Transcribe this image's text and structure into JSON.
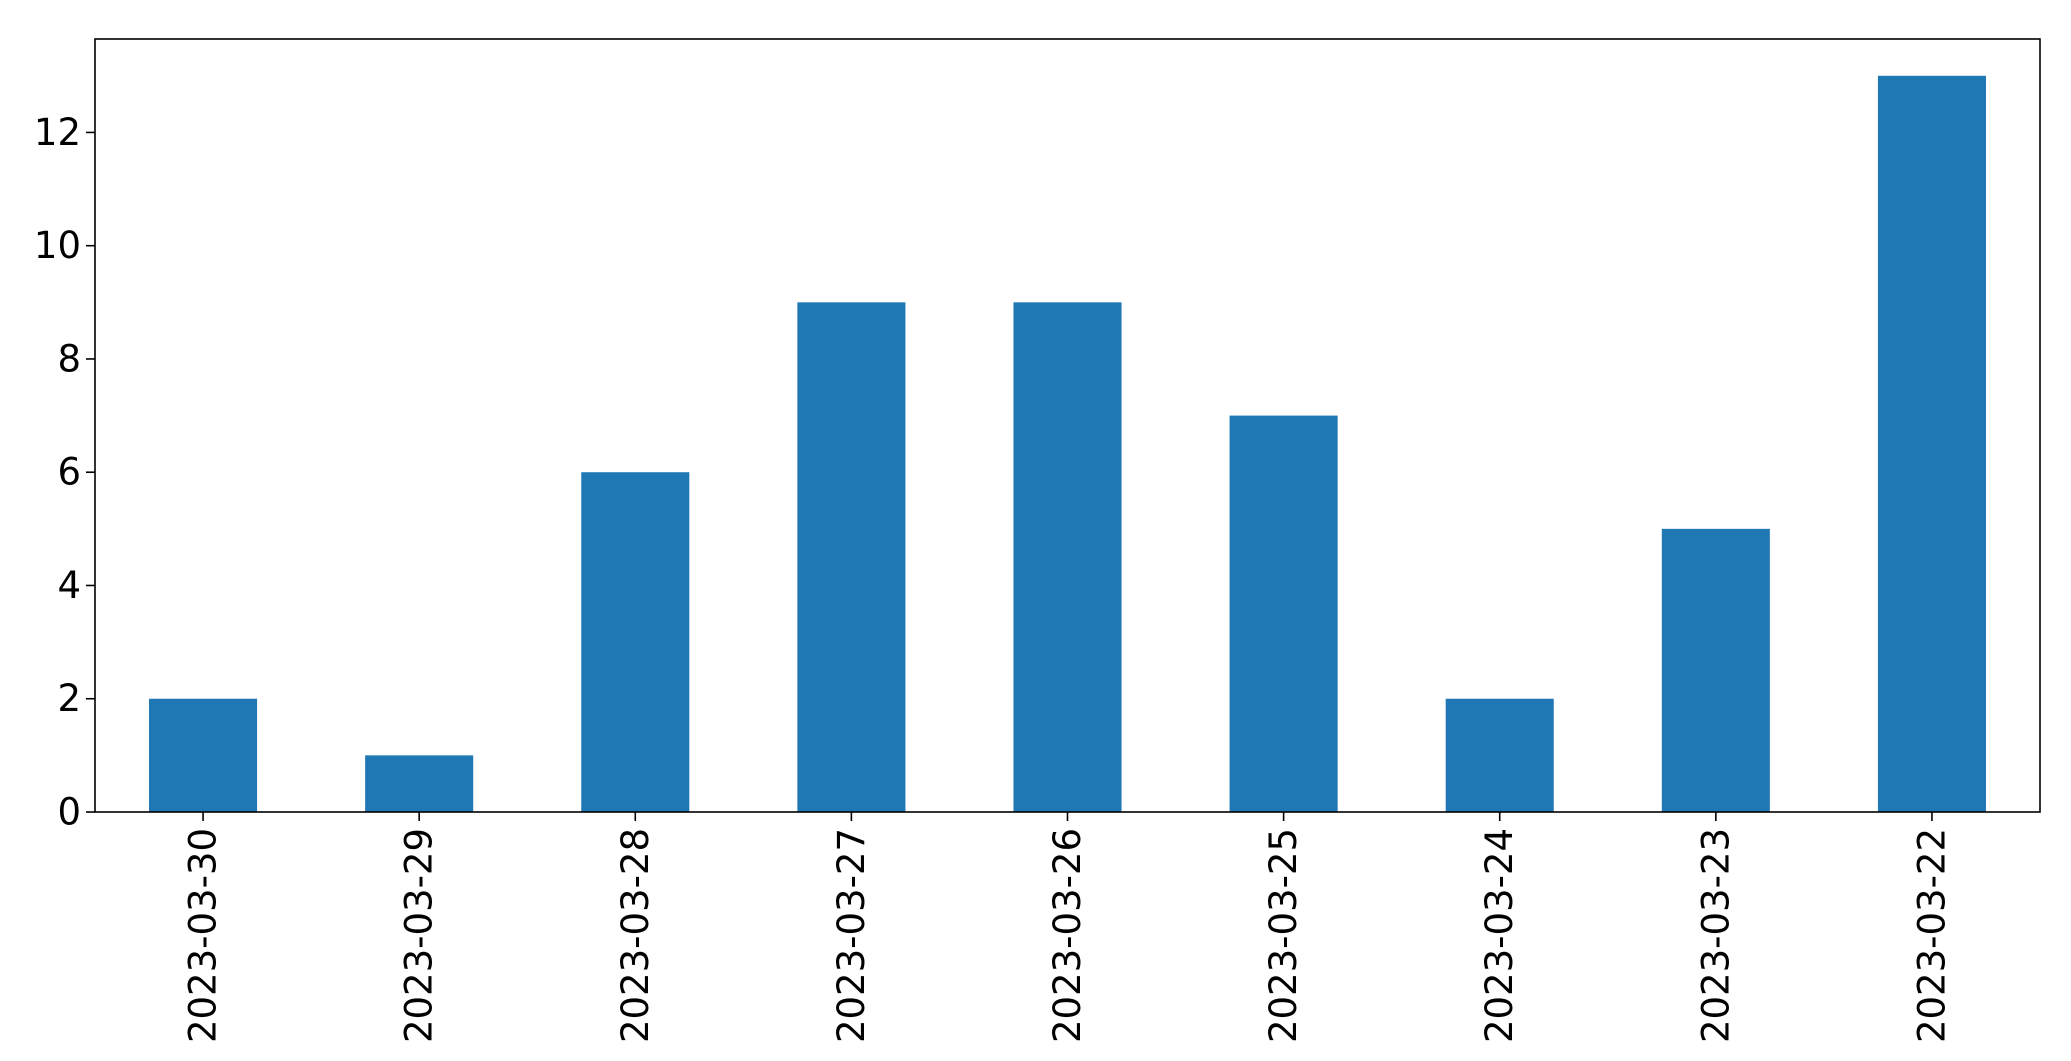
{
  "chart_data": {
    "type": "bar",
    "categories": [
      "2023-03-30",
      "2023-03-29",
      "2023-03-28",
      "2023-03-27",
      "2023-03-26",
      "2023-03-25",
      "2023-03-24",
      "2023-03-23",
      "2023-03-22"
    ],
    "values": [
      2,
      1,
      6,
      9,
      9,
      7,
      2,
      5,
      13
    ],
    "title": "",
    "xlabel": "",
    "ylabel": "",
    "ylim": [
      0,
      13.65
    ],
    "yticks": [
      0,
      2,
      4,
      6,
      8,
      10,
      12
    ],
    "grid": false,
    "bar_color": "#1f77b4"
  }
}
